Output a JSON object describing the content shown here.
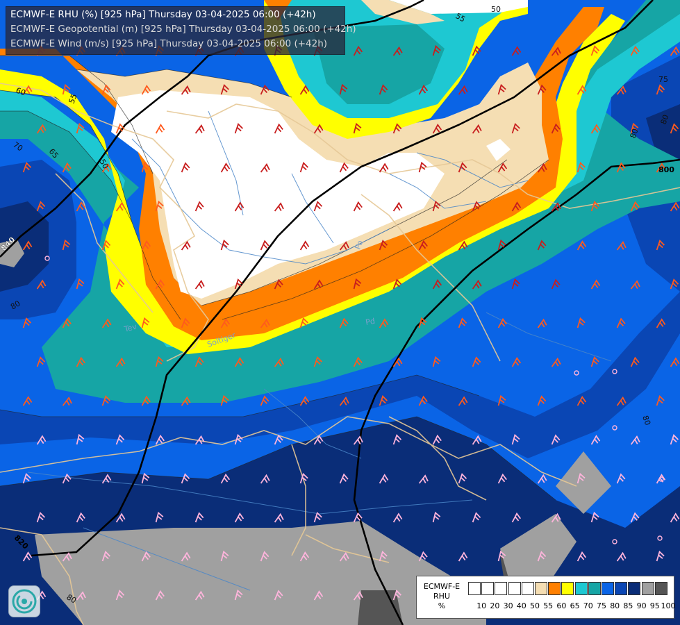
{
  "header": {
    "line1": "ECMWF-E RHU (%) [925 hPa] Thursday 03-04-2025 06:00 (+42h)",
    "line2": "ECMWF-E Geopotential (m) [925 hPa] Thursday 03-04-2025 06:00 (+42h)",
    "line3": "ECMWF-E Wind (m/s) [925 hPa] Thursday 03-04-2025 06:00 (+42h)"
  },
  "legend": {
    "title_lines": [
      "ECMWF-E",
      "RHU",
      "%"
    ],
    "ticks": [
      "10",
      "20",
      "30",
      "40",
      "50",
      "55",
      "60",
      "65",
      "70",
      "75",
      "80",
      "85",
      "90",
      "95",
      "100"
    ],
    "colors": [
      "#ffffff",
      "#ffffff",
      "#ffffff",
      "#ffffff",
      "#ffffff",
      "#f5deb3",
      "#ff8000",
      "#ffff00",
      "#1ec8d2",
      "#16a5a5",
      "#0a64e6",
      "#0a46b4",
      "#0a2d78",
      "#a0a0a0",
      "#555555"
    ]
  },
  "map_labels": {
    "rh_contours": [
      "50",
      "55",
      "60",
      "65",
      "70",
      "75",
      "80",
      "50",
      "55",
      "80",
      "80",
      "80",
      "80"
    ],
    "geopotential": [
      "840",
      "800",
      "820"
    ],
    "places": [
      "Po",
      "Tev",
      "Soltiger",
      "Pd"
    ]
  },
  "colors": {
    "rh_white": "#ffffff",
    "rh_wheat": "#f5deb3",
    "rh_orange": "#ff8000",
    "rh_yellow": "#ffff00",
    "rh_cyan": "#1ec8d2",
    "rh_teal": "#16a5a5",
    "rh_blue": "#0a64e6",
    "rh_midblue": "#0a46b4",
    "rh_navy": "#0a2d78",
    "rh_gray": "#a0a0a0",
    "rh_darkgray": "#555555",
    "barb_red": "#c81e1e",
    "barb_orange": "#ff5a1e",
    "barb_pink": "#ffb4dc",
    "border_tan": "#e6c896"
  },
  "logo_icon": "ecmwf-swirl-logo"
}
